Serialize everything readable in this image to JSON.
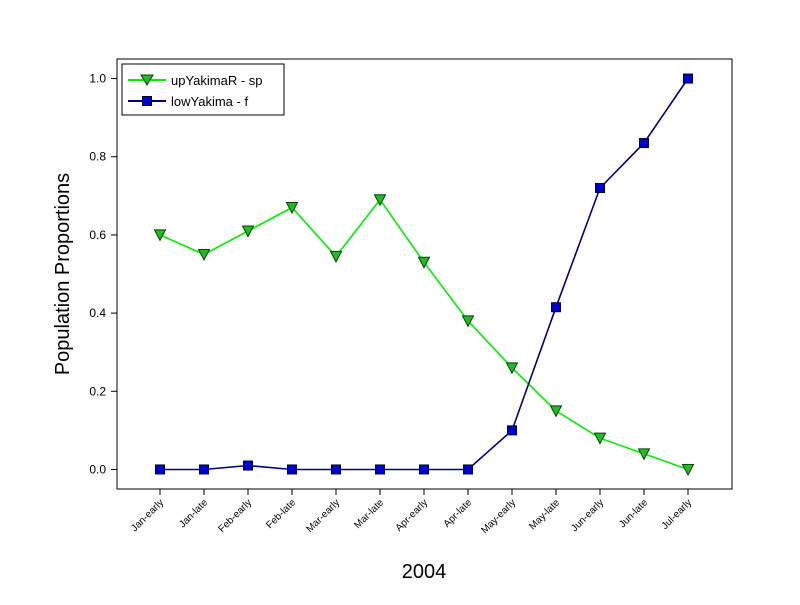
{
  "chart_data": {
    "type": "line",
    "xlabel": "2004",
    "ylabel": "Population Proportions",
    "categories": [
      "Jan-early",
      "Jan-late",
      "Feb-early",
      "Feb-late",
      "Mar-early",
      "Mar-late",
      "Apr-early",
      "Apr-late",
      "May-early",
      "May-late",
      "Jun-early",
      "Jun-late",
      "Jul-early"
    ],
    "ylim": [
      -0.05,
      1.05
    ],
    "yticks": [
      "0.0",
      "0.2",
      "0.4",
      "0.6",
      "0.8",
      "1.0"
    ],
    "grid": false,
    "legend_position": "top-left",
    "series": [
      {
        "name": "upYakimaR - sp",
        "color": "#00ee00",
        "marker": "triangle-down",
        "marker_fill": "#22bb22",
        "values": [
          0.6,
          0.55,
          0.61,
          0.67,
          0.545,
          0.69,
          0.53,
          0.38,
          0.26,
          0.15,
          0.08,
          0.04,
          0.0
        ]
      },
      {
        "name": "lowYakima - f",
        "color": "#000080",
        "marker": "square",
        "marker_fill": "#0000cc",
        "values": [
          0.0,
          0.0,
          0.01,
          0.0,
          0.0,
          0.0,
          0.0,
          0.0,
          0.1,
          0.415,
          0.72,
          0.835,
          1.0
        ]
      }
    ]
  }
}
